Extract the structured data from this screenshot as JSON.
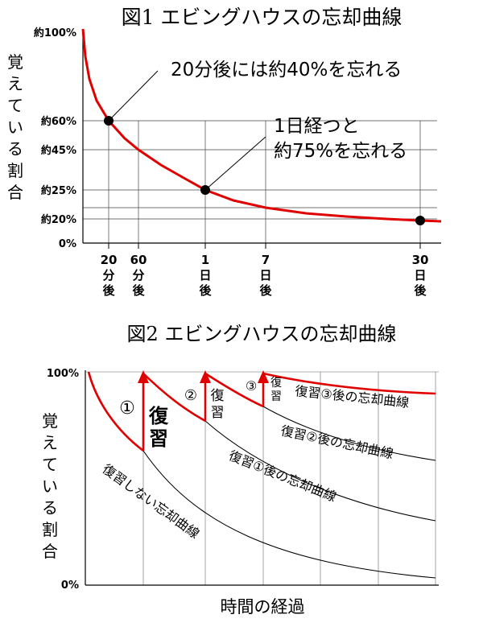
{
  "chart_data": [
    {
      "type": "line",
      "title": "図1 エビングハウスの忘却曲線",
      "ylabel": "覚えている割合",
      "ylim": [
        0,
        100
      ],
      "y_ticks": [
        "約100%",
        "約60%",
        "約45%",
        "約25%",
        "約20%",
        "0%"
      ],
      "x_ticks": [
        {
          "label": "20\n分\n後"
        },
        {
          "label": "60\n分\n後"
        },
        {
          "label": "1\n日\n後"
        },
        {
          "label": "7\n日\n後"
        },
        {
          "label": "30\n日\n後"
        }
      ],
      "series": [
        {
          "values_x": [
            "0分",
            "20分後",
            "60分後",
            "1日後",
            "7日後",
            "30日後"
          ],
          "values": [
            100,
            60,
            45,
            25,
            20,
            20
          ],
          "color": "#e00000"
        }
      ],
      "highlight_points": [
        {
          "x": "20分後",
          "y": 60
        },
        {
          "x": "1日後",
          "y": 25
        },
        {
          "x": "30日後",
          "y": 20
        }
      ],
      "annotations": [
        "20分後には約40%を忘れる",
        "1日経つと\n約75%を忘れる"
      ],
      "grid": true
    },
    {
      "type": "line",
      "title": "図2 エビングハウスの忘却曲線",
      "ylabel": "覚えている割合",
      "xlabel": "時間の経過",
      "ylim": [
        0,
        100
      ],
      "y_ticks": [
        "100%",
        "0%"
      ],
      "review_markers": [
        "①",
        "②",
        "③"
      ],
      "review_labels": [
        "復習",
        "復習",
        "復習"
      ],
      "curve_labels": [
        "復習しない忘却曲線",
        "復習①後の忘却曲線",
        "復習②後の忘却曲線",
        "復習③後の忘却曲線"
      ],
      "grid": true
    }
  ]
}
